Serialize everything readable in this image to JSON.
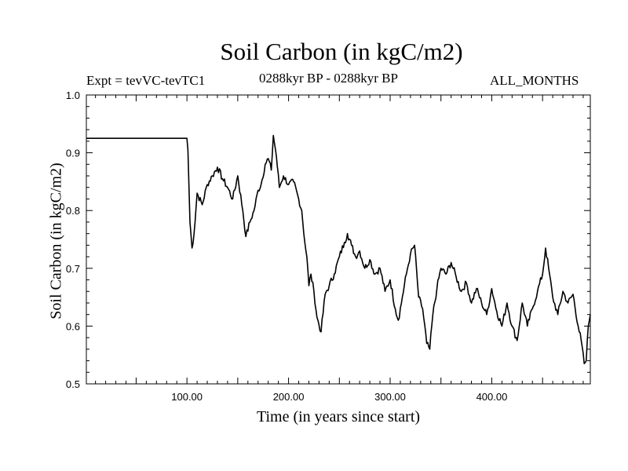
{
  "chart_data": {
    "type": "line",
    "title": "Soil Carbon (in kgC/m2)",
    "subtitle_left": "Expt = tevVC-tevTC1",
    "subtitle_center": "0288kyr BP - 0288kyr BP",
    "subtitle_right": "ALL_MONTHS",
    "xlabel": "Time (in years since start)",
    "ylabel": "Soil Carbon (in kgC/m2)",
    "xlim": [
      1,
      497
    ],
    "ylim": [
      0.5,
      1.0
    ],
    "x_ticks": [
      100,
      200,
      300,
      400
    ],
    "x_tick_labels": [
      "100.00",
      "200.00",
      "300.00",
      "400.00"
    ],
    "y_ticks": [
      0.5,
      0.6,
      0.7,
      0.8,
      0.9,
      1.0
    ],
    "y_tick_labels": [
      "0.5",
      "0.6",
      "0.7",
      "0.8",
      "0.9",
      "1.0"
    ],
    "grid": false,
    "series": [
      {
        "name": "Soil Carbon",
        "x": [
          1,
          100,
          101,
          103,
          105,
          107,
          110,
          115,
          120,
          125,
          130,
          135,
          140,
          145,
          150,
          155,
          158,
          162,
          166,
          170,
          173,
          177,
          180,
          183,
          185,
          188,
          191,
          195,
          200,
          205,
          210,
          213,
          216,
          218,
          220,
          222,
          225,
          228,
          232,
          236,
          240,
          245,
          250,
          255,
          258,
          262,
          266,
          270,
          275,
          280,
          285,
          290,
          295,
          300,
          305,
          308,
          312,
          316,
          320,
          324,
          328,
          332,
          336,
          339,
          342,
          346,
          350,
          355,
          360,
          365,
          370,
          375,
          380,
          385,
          390,
          395,
          400,
          405,
          410,
          415,
          420,
          425,
          430,
          435,
          440,
          445,
          450,
          453,
          456,
          460,
          465,
          470,
          475,
          480,
          485,
          488,
          491,
          493,
          495,
          497
        ],
        "values": [
          0.925,
          0.925,
          0.905,
          0.78,
          0.735,
          0.76,
          0.83,
          0.81,
          0.845,
          0.86,
          0.875,
          0.855,
          0.84,
          0.82,
          0.86,
          0.8,
          0.755,
          0.78,
          0.8,
          0.835,
          0.845,
          0.88,
          0.89,
          0.87,
          0.93,
          0.895,
          0.84,
          0.86,
          0.845,
          0.85,
          0.82,
          0.8,
          0.745,
          0.72,
          0.67,
          0.69,
          0.66,
          0.615,
          0.59,
          0.655,
          0.67,
          0.69,
          0.72,
          0.745,
          0.76,
          0.74,
          0.72,
          0.73,
          0.7,
          0.715,
          0.69,
          0.7,
          0.66,
          0.68,
          0.63,
          0.61,
          0.65,
          0.69,
          0.725,
          0.74,
          0.65,
          0.63,
          0.57,
          0.56,
          0.62,
          0.665,
          0.7,
          0.69,
          0.71,
          0.685,
          0.66,
          0.675,
          0.64,
          0.665,
          0.64,
          0.62,
          0.665,
          0.625,
          0.6,
          0.64,
          0.6,
          0.575,
          0.64,
          0.6,
          0.63,
          0.66,
          0.69,
          0.735,
          0.7,
          0.65,
          0.62,
          0.66,
          0.64,
          0.655,
          0.6,
          0.575,
          0.535,
          0.54,
          0.6,
          0.62
        ]
      }
    ]
  }
}
